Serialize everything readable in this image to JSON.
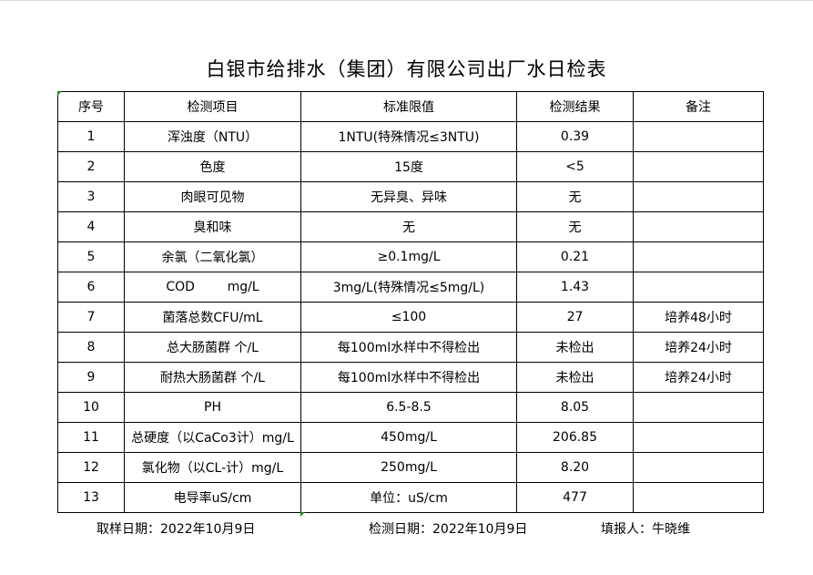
{
  "title": "白银市给排水（集团）有限公司出厂水日检表",
  "headers": [
    "序号",
    "检测项目",
    "标准限值",
    "检测结果",
    "备注"
  ],
  "rows": [
    [
      "1",
      "浑浊度（NTU）",
      "1NTU(特殊情况≤3NTU)",
      "0.39",
      ""
    ],
    [
      "2",
      "色度",
      "15度",
      "<5",
      ""
    ],
    [
      "3",
      "肉眼可见物",
      "无异臭、异味",
      "无",
      ""
    ],
    [
      "4",
      "臭和味",
      "无",
      "无",
      ""
    ],
    [
      "5",
      "余氯（二氧化氯）",
      "≥0.1mg/L",
      "0.21",
      ""
    ],
    [
      "6",
      "COD        mg/L",
      "3mg/L(特殊情况≤5mg/L)",
      "1.43",
      ""
    ],
    [
      "7",
      "菌落总数CFU/mL",
      "≤100",
      "27",
      "培养48小时"
    ],
    [
      "8",
      "总大肠菌群 个/L",
      "每100ml水样中不得检出",
      "未检出",
      "培养24小时"
    ],
    [
      "9",
      "耐热大肠菌群 个/L",
      "每100ml水样中不得检出",
      "未检出",
      "培养24小时"
    ],
    [
      "10",
      "PH",
      "6.5-8.5",
      "8.05",
      ""
    ],
    [
      "11",
      "总硬度（以CaCo3计）mg/L",
      "450mg/L",
      "206.85",
      ""
    ],
    [
      "12",
      "氯化物（以CL-计）mg/L",
      "250mg/L",
      "8.20",
      ""
    ],
    [
      "13",
      "电导率uS/cm",
      "单位：uS/cm",
      "477",
      ""
    ]
  ],
  "footer": {
    "sample_date": "取样日期：2022年10月9日",
    "test_date": "检测日期：2022年10月9日",
    "reporter": "填报人：牛晓维"
  }
}
